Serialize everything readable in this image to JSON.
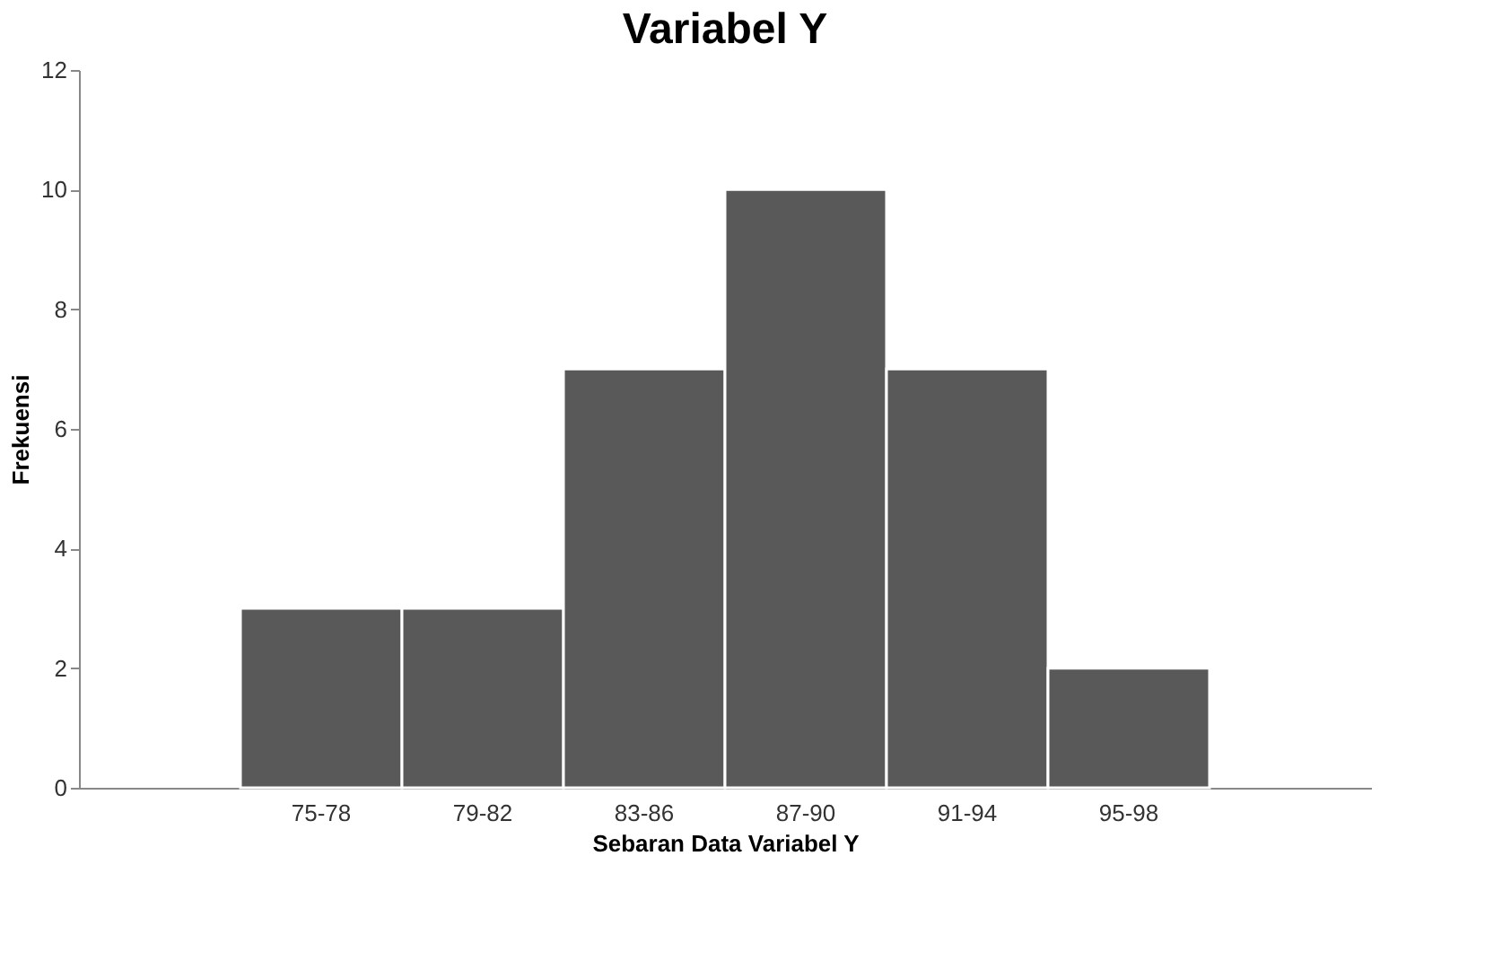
{
  "chart_data": {
    "type": "bar",
    "title": "Variabel Y",
    "xlabel": "Sebaran Data Variabel Y",
    "ylabel": "Frekuensi",
    "categories": [
      null,
      "75-78",
      "79-82",
      "83-86",
      "87-90",
      "91-94",
      "95-98",
      null
    ],
    "values": [
      null,
      3,
      3,
      7,
      10,
      7,
      2,
      null
    ],
    "color": "#595959",
    "ylim": [
      0,
      12
    ],
    "yticks": [
      0,
      2,
      4,
      6,
      8,
      10,
      12
    ],
    "grid": false
  }
}
